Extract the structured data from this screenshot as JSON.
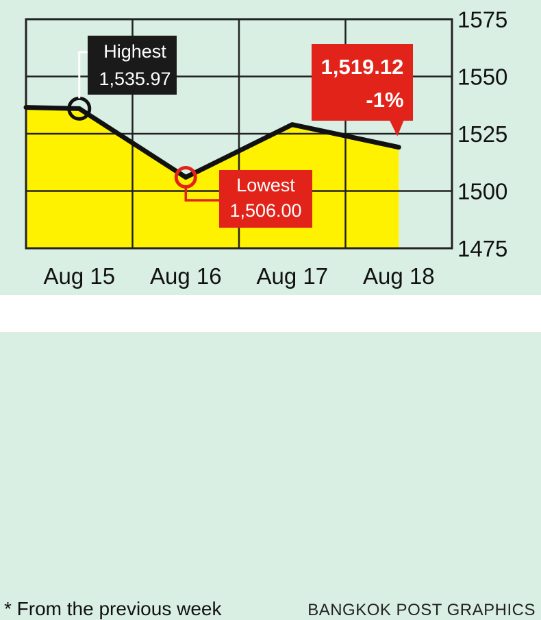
{
  "chart_data": {
    "type": "area",
    "categories": [
      "Aug 15",
      "Aug 16",
      "Aug 17",
      "Aug 18"
    ],
    "series": [
      {
        "values": [
          1535.97,
          1506.0,
          1529.0,
          1519.12
        ]
      }
    ],
    "series_start_value": 1536.5,
    "ylim": [
      1475,
      1575
    ],
    "yticks": [
      "1575",
      "1550",
      "1525",
      "1500",
      "1475"
    ],
    "y_axis_position": "right",
    "grid": true,
    "colors": {
      "area_fill": "#fff200",
      "line": "#111111",
      "plot_background": "#d9efe4",
      "grid": "#222222",
      "callout_dark": "#1a1a1a",
      "callout_red": "#e2231a",
      "marker_low": "#e2231a",
      "marker_high": "#111111"
    },
    "annotations": {
      "highest": {
        "label": "Highest",
        "value_text": "1,535.97",
        "point_index": 0
      },
      "lowest": {
        "label": "Lowest",
        "value_text": "1,506.00",
        "point_index": 1
      },
      "latest": {
        "value_text": "1,519.12",
        "change_text": "-1%",
        "point_index": 3
      }
    }
  },
  "footer": {
    "note": "* From the previous week",
    "credit": "BANGKOK POST GRAPHICS"
  }
}
